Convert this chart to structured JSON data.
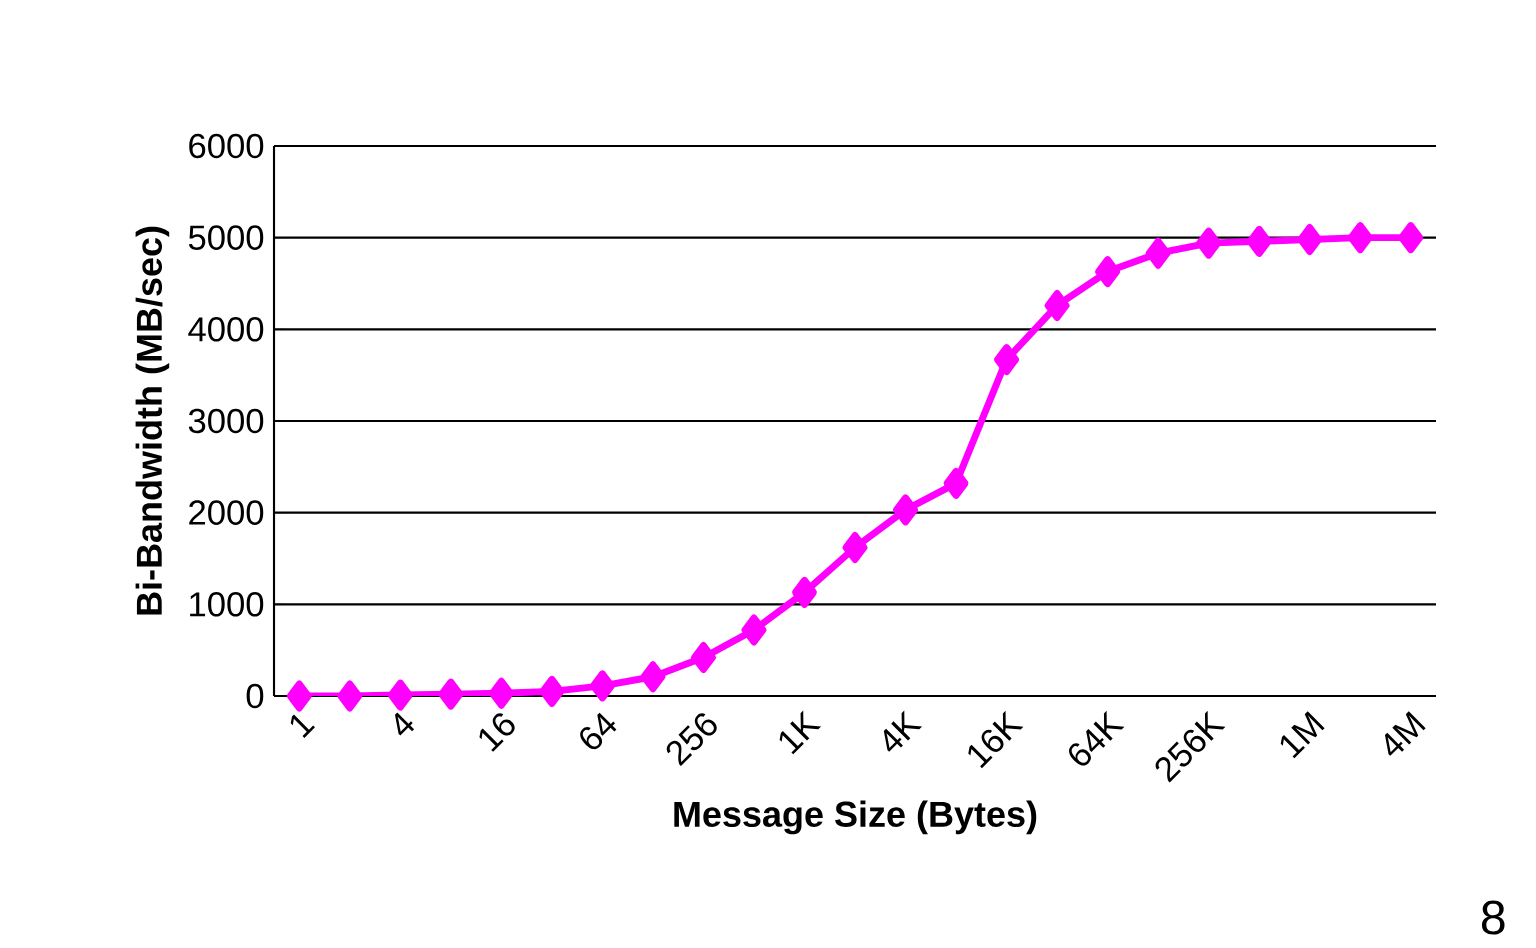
{
  "chart_data": {
    "type": "line",
    "xlabel": "Message Size (Bytes)",
    "ylabel": "Bi-Bandwidth (MB/sec)",
    "categories": [
      "1",
      null,
      "4",
      null,
      "16",
      null,
      "64",
      null,
      "256",
      null,
      "1K",
      null,
      "4K",
      null,
      "16K",
      null,
      "64K",
      null,
      "256K",
      null,
      "1M",
      null,
      "4M"
    ],
    "series": [
      {
        "color": "#ff00ff",
        "values": [
          0,
          0,
          10,
          20,
          30,
          50,
          110,
          210,
          420,
          720,
          1130,
          1620,
          2030,
          2320,
          3670,
          4260,
          4630,
          4830,
          4940,
          4960,
          4980,
          5000,
          5000
        ]
      }
    ],
    "ylim": [
      0,
      6000
    ],
    "yticks": [
      0,
      1000,
      2000,
      3000,
      4000,
      5000,
      6000
    ],
    "grid": "y",
    "marker": "diamond",
    "line_style": "solid",
    "annotations": [
      "8"
    ]
  }
}
